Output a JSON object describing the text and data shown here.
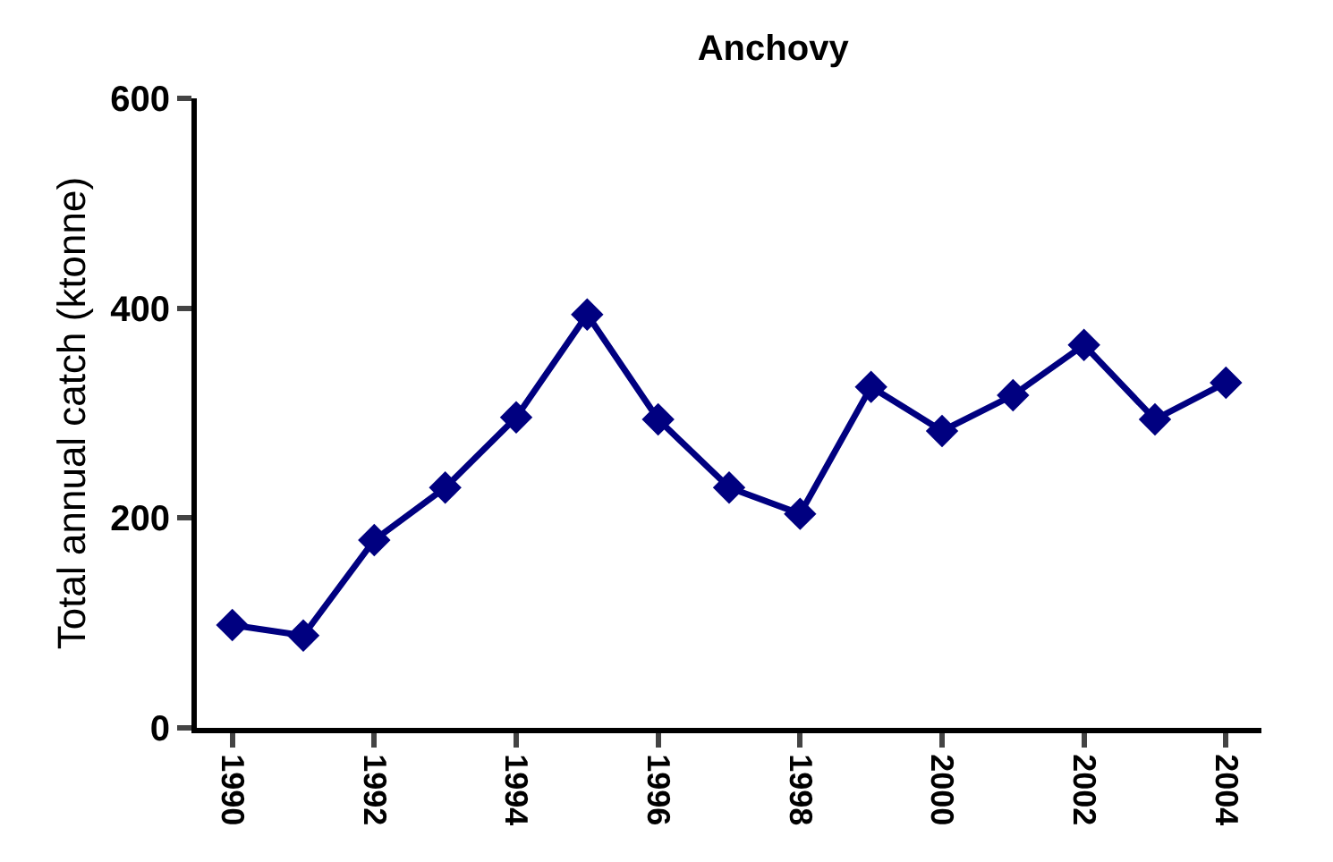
{
  "chart_data": {
    "type": "line",
    "title": "Anchovy",
    "ylabel": "Total annual catch (ktonne)",
    "categories": [
      "1990",
      null,
      "1992",
      null,
      "1994",
      null,
      "1996",
      null,
      "1998",
      null,
      "2000",
      null,
      "2002",
      null,
      "2004"
    ],
    "series": [
      {
        "color": "#000080",
        "values": [
          98,
          88,
          179,
          229,
          296,
          394,
          294,
          229,
          204,
          325,
          283,
          317,
          365,
          294,
          329
        ]
      }
    ],
    "ylim": [
      0,
      600
    ],
    "yticks": [
      0,
      200,
      400,
      600
    ],
    "legend": false,
    "marker": "diamond",
    "line_style": "solid"
  }
}
